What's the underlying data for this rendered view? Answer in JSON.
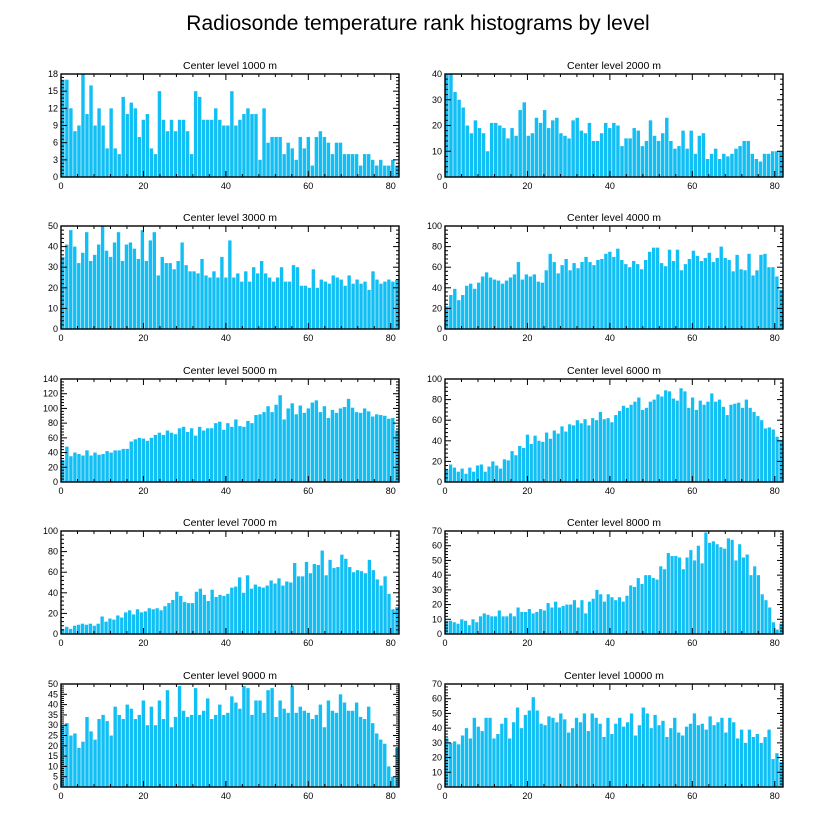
{
  "title": "Radiosonde temperature rank histograms by level",
  "chart_data": [
    {
      "type": "bar",
      "title": "Center level 1000 m",
      "ylim": [
        0,
        18
      ],
      "yticks": [
        0,
        3,
        6,
        9,
        12,
        15,
        18
      ],
      "xlim": [
        0,
        82
      ],
      "xticks": [
        0,
        20,
        40,
        60,
        80
      ],
      "values": [
        17,
        17,
        12,
        8,
        9,
        18,
        11,
        16,
        9,
        12,
        9,
        5,
        12,
        5,
        4,
        14,
        11,
        13,
        12,
        7,
        10,
        11,
        5,
        4,
        15,
        10,
        8,
        10,
        8,
        10,
        10,
        8,
        4,
        15,
        14,
        10,
        10,
        10,
        12,
        10,
        9,
        9,
        15,
        9,
        10,
        11,
        12,
        11,
        11,
        3,
        12,
        6,
        7,
        7,
        7,
        4,
        6,
        5,
        3,
        7,
        5,
        7,
        2,
        7,
        8,
        7,
        6,
        4,
        6,
        6,
        4,
        4,
        4,
        4,
        2,
        4,
        4,
        3,
        2,
        3,
        2,
        2,
        3,
        2
      ]
    },
    {
      "type": "bar",
      "title": "Center level 2000 m",
      "ylim": [
        0,
        40
      ],
      "yticks": [
        0,
        10,
        20,
        30,
        40
      ],
      "xlim": [
        0,
        82
      ],
      "xticks": [
        0,
        20,
        40,
        60,
        80
      ],
      "values": [
        40,
        40,
        33,
        30,
        27,
        20,
        17,
        22,
        19,
        17,
        10,
        21,
        21,
        20,
        19,
        15,
        19,
        16,
        26,
        29,
        16,
        17,
        23,
        21,
        26,
        19,
        22,
        23,
        17,
        16,
        15,
        22,
        23,
        18,
        17,
        21,
        14,
        14,
        17,
        21,
        19,
        21,
        20,
        12,
        15,
        15,
        19,
        18,
        12,
        14,
        22,
        16,
        14,
        17,
        23,
        14,
        11,
        12,
        18,
        11,
        18,
        9,
        16,
        17,
        7,
        9,
        11,
        7,
        9,
        8,
        9,
        11,
        12,
        14,
        14,
        9,
        7,
        6,
        9,
        9,
        10,
        10,
        10
      ]
    },
    {
      "type": "bar",
      "title": "Center level 3000 m",
      "ylim": [
        0,
        50
      ],
      "yticks": [
        0,
        10,
        20,
        30,
        40,
        50
      ],
      "xlim": [
        0,
        82
      ],
      "xticks": [
        0,
        20,
        40,
        60,
        80
      ],
      "values": [
        35,
        41,
        48,
        40,
        32,
        37,
        47,
        33,
        36,
        41,
        50,
        38,
        35,
        42,
        47,
        33,
        41,
        42,
        39,
        34,
        48,
        33,
        43,
        47,
        26,
        35,
        32,
        32,
        29,
        33,
        42,
        31,
        28,
        28,
        27,
        34,
        26,
        25,
        28,
        25,
        35,
        25,
        43,
        25,
        27,
        23,
        28,
        23,
        30,
        27,
        33,
        27,
        25,
        23,
        25,
        30,
        23,
        23,
        31,
        30,
        21,
        21,
        20,
        29,
        20,
        24,
        23,
        22,
        26,
        25,
        24,
        21,
        26,
        22,
        24,
        22,
        23,
        19,
        28,
        24,
        22,
        23,
        24,
        23,
        24
      ]
    },
    {
      "type": "bar",
      "title": "Center level 4000 m",
      "ylim": [
        0,
        100
      ],
      "yticks": [
        0,
        20,
        40,
        60,
        80,
        100
      ],
      "xlim": [
        0,
        82
      ],
      "xticks": [
        0,
        20,
        40,
        60,
        80
      ],
      "values": [
        22,
        33,
        39,
        28,
        33,
        42,
        44,
        39,
        45,
        51,
        55,
        50,
        48,
        47,
        44,
        47,
        50,
        53,
        65,
        48,
        53,
        51,
        53,
        46,
        45,
        57,
        73,
        65,
        54,
        62,
        68,
        57,
        64,
        59,
        65,
        70,
        65,
        62,
        67,
        68,
        73,
        75,
        70,
        78,
        67,
        63,
        60,
        66,
        63,
        58,
        67,
        75,
        79,
        79,
        64,
        61,
        77,
        66,
        77,
        57,
        63,
        68,
        76,
        71,
        66,
        69,
        74,
        65,
        69,
        80,
        69,
        67,
        56,
        72,
        58,
        57,
        73,
        52,
        57,
        72,
        73,
        60,
        60,
        51,
        38
      ]
    },
    {
      "type": "bar",
      "title": "Center level 5000 m",
      "ylim": [
        0,
        140
      ],
      "yticks": [
        0,
        20,
        40,
        60,
        80,
        100,
        120,
        140
      ],
      "xlim": [
        0,
        82
      ],
      "xticks": [
        0,
        20,
        40,
        60,
        80
      ],
      "values": [
        30,
        48,
        35,
        40,
        38,
        36,
        43,
        36,
        40,
        37,
        38,
        42,
        40,
        43,
        43,
        45,
        45,
        55,
        58,
        60,
        59,
        56,
        60,
        64,
        67,
        64,
        70,
        67,
        65,
        73,
        75,
        68,
        73,
        63,
        75,
        70,
        73,
        73,
        80,
        82,
        71,
        80,
        75,
        85,
        76,
        75,
        83,
        80,
        91,
        92,
        95,
        103,
        95,
        105,
        118,
        85,
        100,
        107,
        92,
        104,
        94,
        100,
        108,
        111,
        95,
        103,
        87,
        98,
        94,
        100,
        102,
        113,
        101,
        95,
        94,
        100,
        96,
        89,
        92,
        91,
        90,
        86,
        87,
        70
      ]
    },
    {
      "type": "bar",
      "title": "Center level 6000 m",
      "ylim": [
        0,
        100
      ],
      "yticks": [
        0,
        20,
        40,
        60,
        80,
        100
      ],
      "xlim": [
        0,
        82
      ],
      "xticks": [
        0,
        20,
        40,
        60,
        80
      ],
      "values": [
        12,
        17,
        14,
        10,
        13,
        8,
        14,
        10,
        16,
        17,
        10,
        15,
        20,
        16,
        13,
        22,
        21,
        30,
        26,
        35,
        33,
        46,
        37,
        45,
        40,
        39,
        48,
        42,
        50,
        47,
        54,
        49,
        56,
        55,
        60,
        57,
        61,
        55,
        62,
        60,
        68,
        61,
        62,
        58,
        65,
        69,
        74,
        72,
        75,
        78,
        82,
        70,
        72,
        78,
        80,
        85,
        83,
        89,
        88,
        81,
        79,
        91,
        88,
        72,
        82,
        70,
        79,
        75,
        78,
        86,
        78,
        80,
        73,
        65,
        75,
        76,
        77,
        72,
        80,
        72,
        68,
        64,
        60,
        52,
        53,
        51,
        44,
        41
      ]
    },
    {
      "type": "bar",
      "title": "Center level 7000 m",
      "ylim": [
        0,
        100
      ],
      "yticks": [
        0,
        20,
        40,
        60,
        80,
        100
      ],
      "xlim": [
        0,
        82
      ],
      "xticks": [
        0,
        20,
        40,
        60,
        80
      ],
      "values": [
        5,
        7,
        5,
        8,
        9,
        10,
        9,
        10,
        8,
        10,
        17,
        12,
        15,
        14,
        18,
        16,
        21,
        23,
        19,
        24,
        21,
        22,
        25,
        24,
        25,
        23,
        27,
        30,
        33,
        41,
        37,
        31,
        30,
        30,
        41,
        44,
        38,
        32,
        43,
        36,
        38,
        37,
        39,
        45,
        46,
        55,
        40,
        57,
        44,
        48,
        46,
        45,
        47,
        52,
        49,
        54,
        47,
        51,
        50,
        69,
        56,
        56,
        70,
        59,
        68,
        67,
        81,
        57,
        72,
        64,
        65,
        77,
        73,
        65,
        60,
        62,
        61,
        59,
        72,
        62,
        53,
        47,
        56,
        39,
        24,
        26
      ]
    },
    {
      "type": "bar",
      "title": "Center level 8000 m",
      "ylim": [
        0,
        70
      ],
      "yticks": [
        0,
        10,
        20,
        30,
        40,
        50,
        60,
        70
      ],
      "xlim": [
        0,
        82
      ],
      "xticks": [
        0,
        20,
        40,
        60,
        80
      ],
      "values": [
        9,
        9,
        8,
        7,
        10,
        9,
        6,
        10,
        8,
        12,
        14,
        13,
        12,
        12,
        16,
        12,
        12,
        14,
        12,
        18,
        15,
        15,
        17,
        14,
        15,
        17,
        16,
        21,
        18,
        22,
        18,
        19,
        20,
        20,
        23,
        18,
        23,
        14,
        22,
        24,
        30,
        27,
        22,
        27,
        25,
        23,
        25,
        22,
        26,
        33,
        32,
        38,
        34,
        40,
        40,
        38,
        37,
        46,
        44,
        55,
        53,
        53,
        52,
        44,
        52,
        57,
        50,
        60,
        48,
        69,
        62,
        63,
        61,
        59,
        58,
        65,
        64,
        50,
        61,
        52,
        54,
        40,
        46,
        40,
        27,
        23,
        18,
        8,
        3,
        7
      ]
    },
    {
      "type": "bar",
      "title": "Center level 9000 m",
      "ylim": [
        0,
        50
      ],
      "yticks": [
        0,
        5,
        10,
        15,
        20,
        25,
        30,
        35,
        40,
        45,
        50
      ],
      "xlim": [
        0,
        82
      ],
      "xticks": [
        0,
        20,
        40,
        60,
        80
      ],
      "values": [
        30,
        31,
        25,
        26,
        19,
        22,
        34,
        27,
        23,
        33,
        35,
        32,
        25,
        39,
        35,
        33,
        40,
        38,
        33,
        35,
        42,
        30,
        39,
        30,
        42,
        33,
        47,
        29,
        34,
        49,
        37,
        34,
        35,
        48,
        35,
        37,
        43,
        33,
        35,
        40,
        35,
        36,
        44,
        41,
        38,
        49,
        48,
        35,
        42,
        42,
        36,
        47,
        48,
        34,
        42,
        38,
        36,
        49,
        36,
        39,
        37,
        36,
        33,
        35,
        40,
        29,
        42,
        37,
        36,
        45,
        41,
        37,
        37,
        41,
        34,
        33,
        39,
        31,
        26,
        23,
        21,
        10,
        5,
        19
      ]
    },
    {
      "type": "bar",
      "title": "Center level 10000 m",
      "ylim": [
        0,
        70
      ],
      "yticks": [
        0,
        10,
        20,
        30,
        40,
        50,
        60,
        70
      ],
      "xlim": [
        0,
        82
      ],
      "xticks": [
        0,
        20,
        40,
        60,
        80
      ],
      "values": [
        33,
        30,
        31,
        29,
        35,
        40,
        33,
        47,
        41,
        38,
        47,
        47,
        33,
        36,
        43,
        47,
        33,
        44,
        54,
        40,
        49,
        52,
        61,
        52,
        43,
        42,
        48,
        47,
        44,
        50,
        46,
        37,
        40,
        47,
        44,
        50,
        38,
        50,
        47,
        43,
        34,
        47,
        36,
        43,
        47,
        41,
        44,
        50,
        35,
        42,
        54,
        50,
        40,
        49,
        42,
        45,
        34,
        40,
        47,
        37,
        35,
        41,
        43,
        50,
        42,
        43,
        39,
        48,
        42,
        44,
        47,
        37,
        47,
        44,
        33,
        39,
        30,
        39,
        34,
        36,
        30,
        34,
        39,
        19,
        23,
        17
      ]
    }
  ]
}
